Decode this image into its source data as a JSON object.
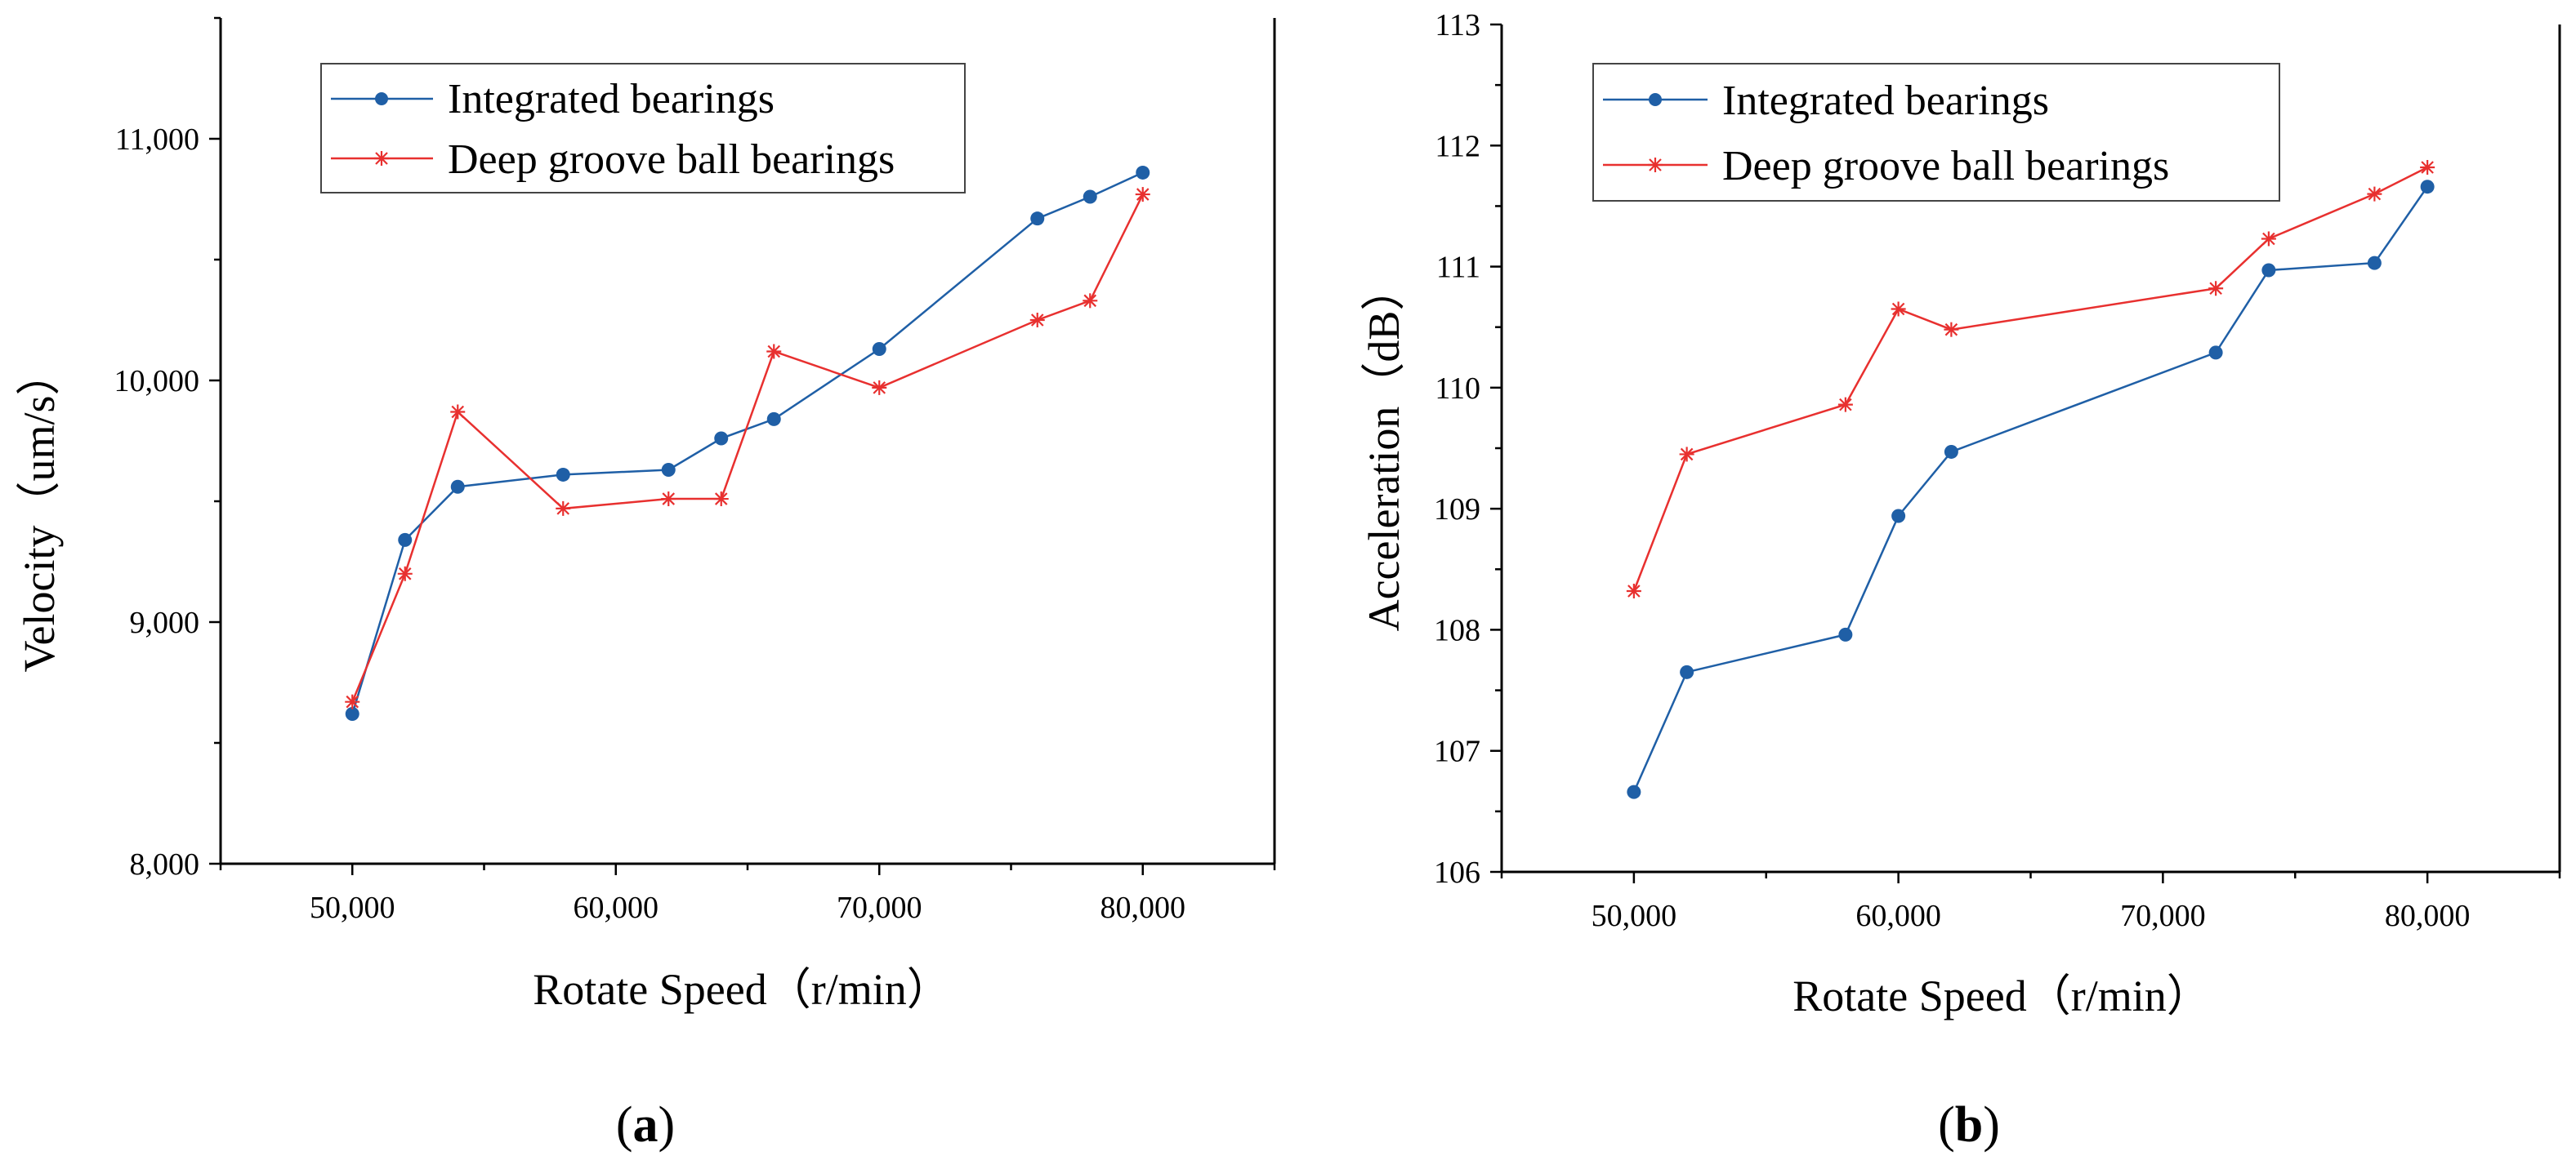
{
  "colors": {
    "integrated": "#1f5fa6",
    "deep_groove": "#e8302f",
    "axis": "#000000"
  },
  "chart_data": [
    {
      "panel_label": "a",
      "type": "line",
      "xlabel": "Rotate Speed（r/min）",
      "ylabel": "Velocity（um/s）",
      "xlim": [
        45000,
        85000
      ],
      "ylim": [
        8000,
        11500
      ],
      "xticks": [
        50000,
        60000,
        70000,
        80000
      ],
      "xtick_labels": [
        "50,000",
        "60,000",
        "70,000",
        "80,000"
      ],
      "yticks": [
        8000,
        9000,
        10000,
        11000
      ],
      "ytick_labels": [
        "8,000",
        "9,000",
        "10,000",
        "11,000"
      ],
      "legend_position": "top-left",
      "grid": false,
      "series": [
        {
          "name": "Integrated bearings",
          "marker": "circle",
          "x": [
            50000,
            52000,
            54000,
            58000,
            62000,
            64000,
            66000,
            70000,
            76000,
            78000,
            80000
          ],
          "y": [
            8620,
            9340,
            9560,
            9610,
            9630,
            9760,
            9840,
            10130,
            10670,
            10760,
            10860
          ]
        },
        {
          "name": "Deep groove ball bearings",
          "marker": "asterisk",
          "x": [
            50000,
            52000,
            54000,
            58000,
            62000,
            64000,
            66000,
            70000,
            76000,
            78000,
            80000
          ],
          "y": [
            8670,
            9200,
            9870,
            9470,
            9510,
            9510,
            10120,
            9970,
            10250,
            10330,
            10770
          ]
        }
      ]
    },
    {
      "panel_label": "b",
      "type": "line",
      "xlabel": "Rotate Speed（r/min）",
      "ylabel": "Acceleration（dB）",
      "xlim": [
        45000,
        85000
      ],
      "ylim": [
        106,
        113
      ],
      "xticks": [
        50000,
        60000,
        70000,
        80000
      ],
      "xtick_labels": [
        "50,000",
        "60,000",
        "70,000",
        "80,000"
      ],
      "yticks": [
        106,
        107,
        108,
        109,
        110,
        111,
        112,
        113
      ],
      "ytick_labels": [
        "106",
        "107",
        "108",
        "109",
        "110",
        "111",
        "112",
        "113"
      ],
      "legend_position": "top-left",
      "grid": false,
      "series": [
        {
          "name": "Integrated bearings",
          "marker": "circle",
          "x": [
            50000,
            52000,
            58000,
            60000,
            62000,
            72000,
            74000,
            78000,
            80000
          ],
          "y": [
            106.66,
            107.65,
            107.96,
            108.94,
            109.47,
            110.29,
            110.97,
            111.03,
            111.66
          ]
        },
        {
          "name": "Deep groove ball bearings",
          "marker": "asterisk",
          "x": [
            50000,
            52000,
            58000,
            60000,
            62000,
            72000,
            74000,
            78000,
            80000
          ],
          "y": [
            108.32,
            109.45,
            109.86,
            110.65,
            110.48,
            110.82,
            111.23,
            111.6,
            111.82
          ]
        }
      ]
    }
  ]
}
